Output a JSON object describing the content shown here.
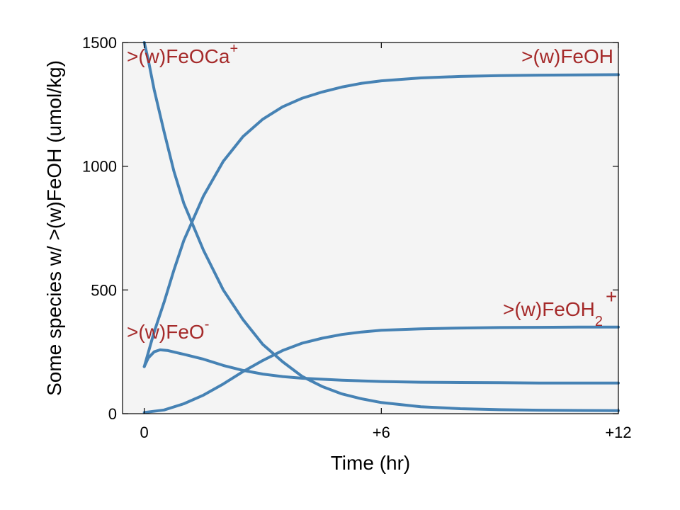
{
  "chart_data": {
    "type": "line",
    "xlabel": "Time (hr)",
    "ylabel": "Some species w/ >(w)FeOH (umol/kg)",
    "xlim": [
      -0.55,
      12.0
    ],
    "ylim": [
      0,
      1500
    ],
    "x_ticks": [
      {
        "value": 0,
        "label": "0"
      },
      {
        "value": 6,
        "label": "+6"
      },
      {
        "value": 12,
        "label": "+12"
      }
    ],
    "y_ticks": [
      {
        "value": 0,
        "label": "0"
      },
      {
        "value": 500,
        "label": "500"
      },
      {
        "value": 1000,
        "label": "1000"
      },
      {
        "value": 1500,
        "label": "1500"
      }
    ],
    "grid": false,
    "background_color": "#f4f4f4",
    "line_color": "#4682b4",
    "label_color": "#a52a2a",
    "series": [
      {
        "name": ">(w)FeOH",
        "label_parts": {
          "base": ">(w)FeOH",
          "sup": "",
          "sub": ""
        },
        "points": [
          [
            0,
            190
          ],
          [
            0.25,
            330
          ],
          [
            0.5,
            450
          ],
          [
            0.75,
            580
          ],
          [
            1,
            700
          ],
          [
            1.5,
            880
          ],
          [
            2,
            1020
          ],
          [
            2.5,
            1120
          ],
          [
            3,
            1190
          ],
          [
            3.5,
            1240
          ],
          [
            4,
            1275
          ],
          [
            4.5,
            1300
          ],
          [
            5,
            1320
          ],
          [
            5.5,
            1335
          ],
          [
            6,
            1345
          ],
          [
            7,
            1357
          ],
          [
            8,
            1363
          ],
          [
            9,
            1366
          ],
          [
            10,
            1368
          ],
          [
            11,
            1369
          ],
          [
            12,
            1370
          ]
        ]
      },
      {
        "name": ">(w)FeOCa+",
        "label_parts": {
          "base": ">(w)FeOCa",
          "sup": "+",
          "sub": ""
        },
        "points": [
          [
            0,
            1500
          ],
          [
            0.1,
            1430
          ],
          [
            0.25,
            1310
          ],
          [
            0.5,
            1140
          ],
          [
            0.75,
            980
          ],
          [
            1,
            850
          ],
          [
            1.5,
            660
          ],
          [
            2,
            500
          ],
          [
            2.5,
            380
          ],
          [
            3,
            280
          ],
          [
            3.5,
            210
          ],
          [
            4,
            150
          ],
          [
            4.5,
            110
          ],
          [
            5,
            80
          ],
          [
            5.5,
            60
          ],
          [
            6,
            45
          ],
          [
            7,
            28
          ],
          [
            8,
            20
          ],
          [
            9,
            16
          ],
          [
            10,
            14
          ],
          [
            11,
            13
          ],
          [
            12,
            12
          ]
        ]
      },
      {
        "name": ">(w)FeO-",
        "label_parts": {
          "base": ">(w)FeO",
          "sup": "-",
          "sub": ""
        },
        "points": [
          [
            0,
            190
          ],
          [
            0.1,
            225
          ],
          [
            0.25,
            250
          ],
          [
            0.4,
            258
          ],
          [
            0.6,
            255
          ],
          [
            1,
            240
          ],
          [
            1.5,
            220
          ],
          [
            2,
            195
          ],
          [
            2.5,
            175
          ],
          [
            3,
            160
          ],
          [
            3.5,
            150
          ],
          [
            4,
            143
          ],
          [
            5,
            135
          ],
          [
            6,
            130
          ],
          [
            7,
            127
          ],
          [
            8,
            126
          ],
          [
            9,
            125
          ],
          [
            10,
            124
          ],
          [
            11,
            124
          ],
          [
            12,
            124
          ]
        ]
      },
      {
        "name": ">(w)FeOH2+",
        "label_parts": {
          "base": ">(w)FeOH",
          "sup": "+",
          "sub": "2"
        },
        "points": [
          [
            0,
            5
          ],
          [
            0.5,
            15
          ],
          [
            1,
            40
          ],
          [
            1.5,
            75
          ],
          [
            2,
            120
          ],
          [
            2.5,
            170
          ],
          [
            3,
            215
          ],
          [
            3.5,
            255
          ],
          [
            4,
            285
          ],
          [
            4.5,
            305
          ],
          [
            5,
            320
          ],
          [
            5.5,
            330
          ],
          [
            6,
            337
          ],
          [
            7,
            343
          ],
          [
            8,
            346
          ],
          [
            9,
            348
          ],
          [
            10,
            349
          ],
          [
            11,
            350
          ],
          [
            12,
            350
          ]
        ]
      }
    ]
  }
}
